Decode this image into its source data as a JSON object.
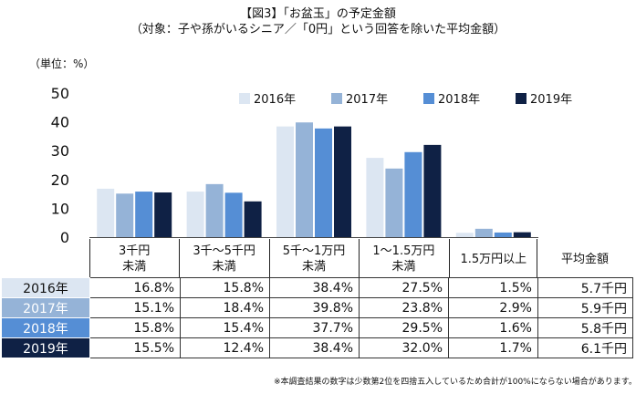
{
  "title_line1": "【図3】「お盆玉」の予定金額",
  "title_line2": "（対象：子や孫がいるシニア／「0円」という回答を除いた平均金額）",
  "unit_label": "（単位：%）",
  "footnote": "※本調査結果の数字は少数第2位を四捨五入しているため合計が100%にならない場合があります。",
  "avg_header": "平均金額",
  "colors": {
    "2016年": "#dce6f2",
    "2017年": "#95b3d7",
    "2018年": "#558ed5",
    "2019年": "#0f2145"
  },
  "table_rows": [
    {
      "year": "2016年",
      "values": [
        "16.8%",
        "15.8%",
        "38.4%",
        "27.5%",
        "1.5%"
      ],
      "avg": "5.7千円"
    },
    {
      "year": "2017年",
      "values": [
        "15.1%",
        "18.4%",
        "39.8%",
        "23.8%",
        "2.9%"
      ],
      "avg": "5.9千円"
    },
    {
      "year": "2018年",
      "values": [
        "15.8%",
        "15.4%",
        "37.7%",
        "29.5%",
        "1.6%"
      ],
      "avg": "5.8千円"
    },
    {
      "year": "2019年",
      "values": [
        "15.5%",
        "12.4%",
        "38.4%",
        "32.0%",
        "1.7%"
      ],
      "avg": "6.1千円"
    }
  ],
  "chart_data": {
    "type": "bar",
    "title": "【図3】「お盆玉」の予定金額",
    "subtitle": "（対象：子や孫がいるシニア／「0円」という回答を除いた平均金額）",
    "ylabel": "（単位：%）",
    "ylim": [
      0,
      50
    ],
    "yticks": [
      0,
      10,
      20,
      30,
      40,
      50
    ],
    "categories": [
      "3千円\n未満",
      "3千～5千円\n未満",
      "5千～1万円\n未満",
      "1～1.5万円\n未満",
      "1.5万円以上"
    ],
    "legend_position": "top-right",
    "series": [
      {
        "name": "2016年",
        "values": [
          16.8,
          15.8,
          38.4,
          27.5,
          1.5
        ]
      },
      {
        "name": "2017年",
        "values": [
          15.1,
          18.4,
          39.8,
          23.8,
          2.9
        ]
      },
      {
        "name": "2018年",
        "values": [
          15.8,
          15.4,
          37.7,
          29.5,
          1.6
        ]
      },
      {
        "name": "2019年",
        "values": [
          15.5,
          12.4,
          38.4,
          32.0,
          1.7
        ]
      }
    ]
  }
}
